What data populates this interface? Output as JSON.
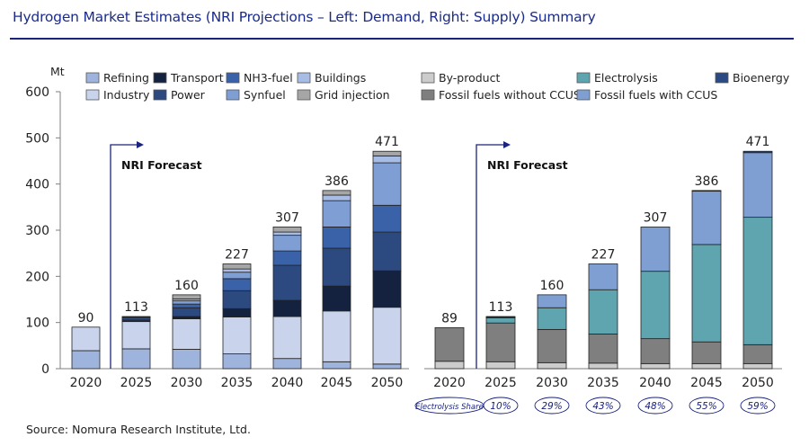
{
  "title": "Hydrogen Market Estimates (NRI Projections – Left: Demand, Right: Supply) Summary",
  "source": "Source: Nomura Research Institute, Ltd.",
  "chart_data": [
    {
      "type": "bar",
      "stacked": true,
      "title": "Demand",
      "ylabel": "Mt",
      "ylim": [
        0,
        600
      ],
      "yticks": [
        "0",
        "100",
        "200",
        "300",
        "400",
        "500",
        "600"
      ],
      "categories": [
        "2020",
        "2025",
        "2030",
        "2035",
        "2040",
        "2045",
        "2050"
      ],
      "totals": [
        "90",
        "113",
        "160",
        "227",
        "307",
        "386",
        "471"
      ],
      "annotation": "NRI Forecast",
      "legend": "top",
      "series": [
        {
          "name": "Refining",
          "color": "#9fb4dc",
          "values": [
            39,
            43,
            42,
            32,
            22,
            15,
            10
          ]
        },
        {
          "name": "Industry",
          "color": "#c9d4ec",
          "values": [
            51,
            59,
            66,
            80,
            91,
            110,
            123
          ]
        },
        {
          "name": "Transport",
          "color": "#14223f",
          "values": [
            0,
            2,
            5,
            18,
            35,
            54,
            79
          ]
        },
        {
          "name": "Power",
          "color": "#2c4a80",
          "values": [
            0,
            3,
            19,
            39,
            76,
            82,
            84
          ]
        },
        {
          "name": "NH3-fuel",
          "color": "#3a62a8",
          "values": [
            0,
            4,
            8,
            26,
            31,
            46,
            58
          ]
        },
        {
          "name": "Synfuel",
          "color": "#7e9ed4",
          "values": [
            0,
            1,
            7,
            14,
            34,
            57,
            92
          ]
        },
        {
          "name": "Buildings",
          "color": "#a8bde6",
          "values": [
            0,
            1,
            4,
            7,
            7,
            12,
            15
          ]
        },
        {
          "name": "Grid injection",
          "color": "#a6a6a6",
          "values": [
            0,
            0,
            9,
            11,
            11,
            10,
            10
          ]
        }
      ]
    },
    {
      "type": "bar",
      "stacked": true,
      "title": "Supply",
      "ylabel": "Mt",
      "ylim": [
        0,
        600
      ],
      "categories": [
        "2020",
        "2025",
        "2030",
        "2035",
        "2040",
        "2045",
        "2050"
      ],
      "totals": [
        "89",
        "113",
        "160",
        "227",
        "307",
        "386",
        "471"
      ],
      "annotation": "NRI Forecast",
      "legend": "top",
      "electrolysis_share_label": "Electrolysis Share",
      "electrolysis_share": [
        "10%",
        "29%",
        "43%",
        "48%",
        "55%",
        "59%"
      ],
      "series": [
        {
          "name": "By-product",
          "color": "#cccccc",
          "values": [
            16,
            15,
            13,
            12,
            11,
            11,
            11
          ]
        },
        {
          "name": "Fossil fuels without CCUS",
          "color": "#7f7f7f",
          "values": [
            73,
            84,
            72,
            63,
            54,
            47,
            41
          ]
        },
        {
          "name": "Electrolysis",
          "color": "#5fa5b0",
          "values": [
            0,
            11,
            47,
            96,
            146,
            211,
            276
          ]
        },
        {
          "name": "Fossil fuels with CCUS",
          "color": "#7f9fd3",
          "values": [
            0,
            2,
            28,
            56,
            96,
            116,
            140
          ]
        },
        {
          "name": "Bioenergy",
          "color": "#2b4a84",
          "values": [
            0,
            1,
            0,
            0,
            0,
            1,
            3
          ]
        }
      ]
    }
  ]
}
